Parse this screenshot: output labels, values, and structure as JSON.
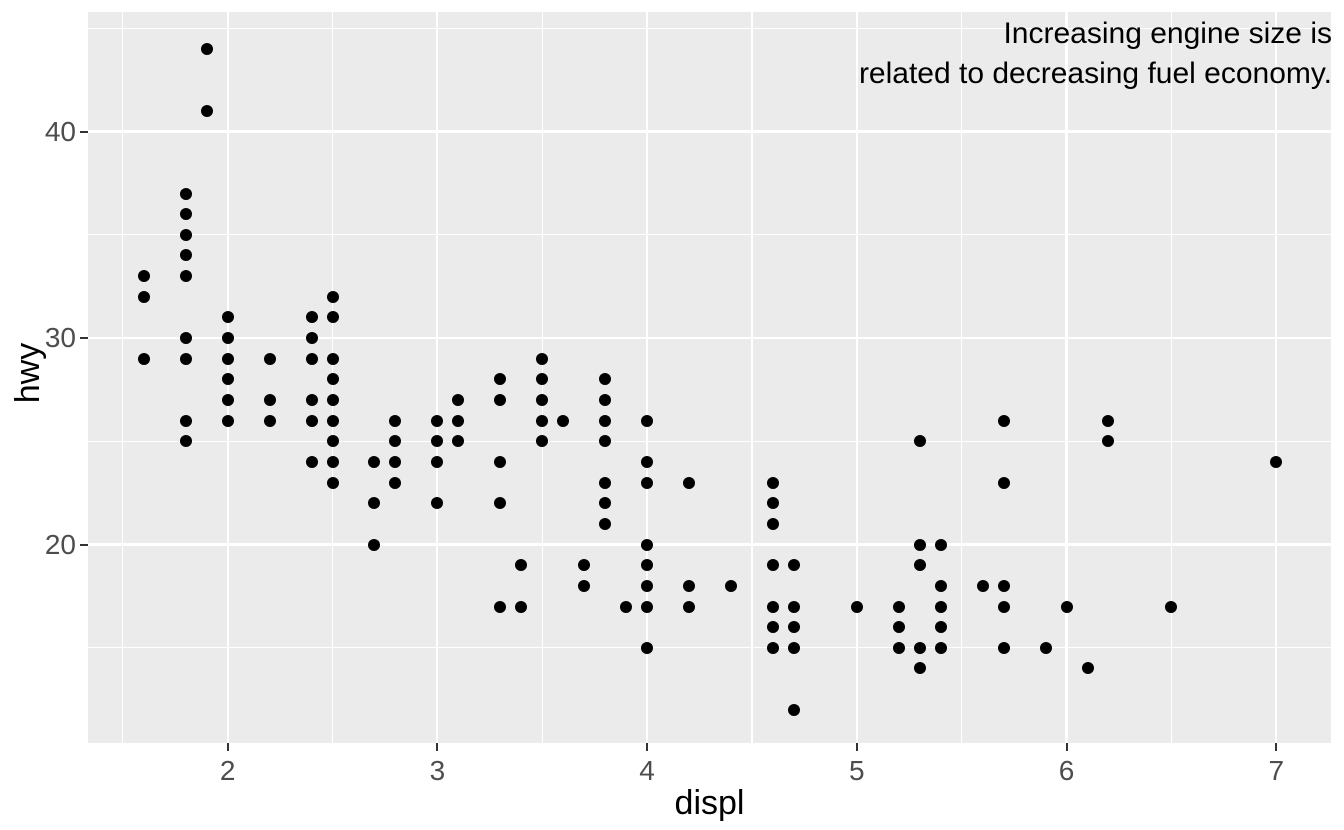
{
  "chart_data": {
    "type": "scatter",
    "title": "Increasing engine size is related to decreasing fuel economy.",
    "title_lines": [
      "Increasing engine size is",
      "related to decreasing fuel economy."
    ],
    "xlabel": "displ",
    "ylabel": "hwy",
    "x_ticks": [
      2,
      3,
      4,
      5,
      6,
      7
    ],
    "y_ticks": [
      20,
      30,
      40
    ],
    "x_minor_ticks": [
      1.5,
      2.5,
      3.5,
      4.5,
      5.5,
      6.5
    ],
    "y_minor_ticks": [
      15,
      25,
      35,
      45
    ],
    "xlim": [
      1.334,
      7.261
    ],
    "ylim": [
      10.39,
      45.79
    ],
    "grid": true,
    "legend": "none",
    "points": [
      [
        1.6,
        29
      ],
      [
        1.6,
        32
      ],
      [
        1.6,
        33
      ],
      [
        1.8,
        25
      ],
      [
        1.8,
        26
      ],
      [
        1.8,
        29
      ],
      [
        1.8,
        30
      ],
      [
        1.8,
        33
      ],
      [
        1.8,
        34
      ],
      [
        1.8,
        35
      ],
      [
        1.8,
        36
      ],
      [
        1.8,
        37
      ],
      [
        1.9,
        41
      ],
      [
        1.9,
        44
      ],
      [
        2.0,
        26
      ],
      [
        2.0,
        27
      ],
      [
        2.0,
        28
      ],
      [
        2.0,
        29
      ],
      [
        2.0,
        30
      ],
      [
        2.0,
        31
      ],
      [
        2.2,
        26
      ],
      [
        2.2,
        27
      ],
      [
        2.2,
        29
      ],
      [
        2.4,
        24
      ],
      [
        2.4,
        26
      ],
      [
        2.4,
        27
      ],
      [
        2.4,
        29
      ],
      [
        2.4,
        30
      ],
      [
        2.4,
        31
      ],
      [
        2.5,
        23
      ],
      [
        2.5,
        24
      ],
      [
        2.5,
        25
      ],
      [
        2.5,
        26
      ],
      [
        2.5,
        27
      ],
      [
        2.5,
        28
      ],
      [
        2.5,
        29
      ],
      [
        2.5,
        31
      ],
      [
        2.5,
        32
      ],
      [
        2.7,
        20
      ],
      [
        2.7,
        22
      ],
      [
        2.7,
        24
      ],
      [
        2.8,
        23
      ],
      [
        2.8,
        24
      ],
      [
        2.8,
        25
      ],
      [
        2.8,
        26
      ],
      [
        3.0,
        22
      ],
      [
        3.0,
        24
      ],
      [
        3.0,
        25
      ],
      [
        3.0,
        26
      ],
      [
        3.1,
        25
      ],
      [
        3.1,
        26
      ],
      [
        3.1,
        27
      ],
      [
        3.3,
        17
      ],
      [
        3.3,
        22
      ],
      [
        3.3,
        24
      ],
      [
        3.3,
        27
      ],
      [
        3.3,
        28
      ],
      [
        3.4,
        17
      ],
      [
        3.4,
        19
      ],
      [
        3.5,
        25
      ],
      [
        3.5,
        26
      ],
      [
        3.5,
        27
      ],
      [
        3.5,
        28
      ],
      [
        3.5,
        29
      ],
      [
        3.6,
        26
      ],
      [
        3.7,
        18
      ],
      [
        3.7,
        19
      ],
      [
        3.8,
        21
      ],
      [
        3.8,
        22
      ],
      [
        3.8,
        23
      ],
      [
        3.8,
        25
      ],
      [
        3.8,
        26
      ],
      [
        3.8,
        27
      ],
      [
        3.8,
        28
      ],
      [
        3.9,
        17
      ],
      [
        4.0,
        15
      ],
      [
        4.0,
        17
      ],
      [
        4.0,
        18
      ],
      [
        4.0,
        19
      ],
      [
        4.0,
        20
      ],
      [
        4.0,
        23
      ],
      [
        4.0,
        24
      ],
      [
        4.0,
        26
      ],
      [
        4.2,
        17
      ],
      [
        4.2,
        18
      ],
      [
        4.2,
        23
      ],
      [
        4.4,
        18
      ],
      [
        4.6,
        15
      ],
      [
        4.6,
        16
      ],
      [
        4.6,
        17
      ],
      [
        4.6,
        19
      ],
      [
        4.6,
        21
      ],
      [
        4.6,
        22
      ],
      [
        4.6,
        23
      ],
      [
        4.7,
        12
      ],
      [
        4.7,
        15
      ],
      [
        4.7,
        16
      ],
      [
        4.7,
        17
      ],
      [
        4.7,
        19
      ],
      [
        5.0,
        17
      ],
      [
        5.2,
        15
      ],
      [
        5.2,
        16
      ],
      [
        5.2,
        17
      ],
      [
        5.3,
        14
      ],
      [
        5.3,
        15
      ],
      [
        5.3,
        19
      ],
      [
        5.3,
        20
      ],
      [
        5.3,
        25
      ],
      [
        5.4,
        15
      ],
      [
        5.4,
        16
      ],
      [
        5.4,
        17
      ],
      [
        5.4,
        18
      ],
      [
        5.4,
        20
      ],
      [
        5.6,
        18
      ],
      [
        5.7,
        15
      ],
      [
        5.7,
        17
      ],
      [
        5.7,
        18
      ],
      [
        5.7,
        23
      ],
      [
        5.7,
        26
      ],
      [
        5.9,
        15
      ],
      [
        6.0,
        17
      ],
      [
        6.1,
        14
      ],
      [
        6.2,
        25
      ],
      [
        6.2,
        26
      ],
      [
        6.5,
        17
      ],
      [
        7.0,
        24
      ]
    ]
  },
  "style": {
    "background": "#FFFFFF",
    "panel_background": "#EBEBEB",
    "grid_color": "#FFFFFF",
    "point_color": "#000000",
    "tick_label_color": "#4D4D4D",
    "tick_mark_color": "#333333",
    "axis_title_color": "#000000",
    "title_color": "#000000"
  }
}
